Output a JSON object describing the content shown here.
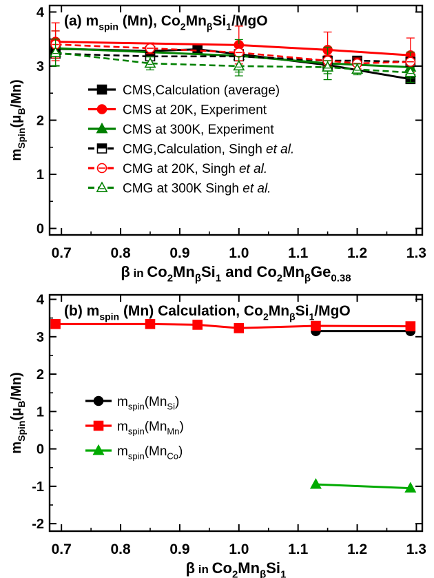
{
  "chart_data": [
    {
      "type": "line",
      "panel": "a",
      "title": {
        "prefix": "(a) m",
        "sub1": "spin",
        "mid": " (Mn), Co",
        "s2": "2",
        "mn": "Mn",
        "s3": "β",
        "si": "Si",
        "s4": "1",
        "tail": "/MgO"
      },
      "ylabel": {
        "m": "m",
        "sub1": "Spin",
        "open": "(μ",
        "sub2": "B",
        "close": "/Mn)"
      },
      "xlabel": {
        "beta": "β",
        " in": " in ",
        "co": "Co",
        "s1": "2",
        "mn": "Mn",
        "s2": "β",
        "si": "Si",
        "s3": "1",
        "and": " and Co",
        "s4": "2",
        "mn2": "Mn",
        "s5": "β",
        "ge": "Ge",
        "s6": "0.38"
      },
      "xlim": [
        0.68,
        1.31
      ],
      "ylim": [
        -0.12,
        4.12
      ],
      "xticks": [
        "0.7",
        "0.8",
        "0.9",
        "1.0",
        "1.1",
        "1.2",
        "1.3"
      ],
      "xtick_values": [
        0.7,
        0.8,
        0.9,
        1.0,
        1.1,
        1.2,
        1.3
      ],
      "yticks": [
        "0",
        "1",
        "2",
        "3",
        "4"
      ],
      "ytick_values": [
        0,
        1,
        2,
        3,
        4
      ],
      "legend_position": "middle-left",
      "series": [
        {
          "name": "CMS,Calculation (average)",
          "color": "#000000",
          "dash": "solid",
          "marker": "square",
          "filled": true,
          "x": [
            0.69,
            0.85,
            0.93,
            1.0,
            1.15,
            1.29
          ],
          "y": [
            3.32,
            3.28,
            3.31,
            3.22,
            3.02,
            2.76
          ],
          "err": []
        },
        {
          "name": "CMS at 20K, Experiment",
          "color": "#ff0000",
          "dash": "solid",
          "marker": "circle",
          "filled": true,
          "x": [
            0.69,
            1.0,
            1.15,
            1.29
          ],
          "y": [
            3.45,
            3.39,
            3.3,
            3.2
          ],
          "err": [
            0.35,
            0.35,
            0.33,
            0.32
          ]
        },
        {
          "name": "CMS at 300K, Experiment",
          "color": "#008000",
          "dash": "solid",
          "marker": "triangle",
          "filled": true,
          "x": [
            0.69,
            1.0,
            1.15,
            1.29
          ],
          "y": [
            3.33,
            3.19,
            3.05,
            2.98
          ],
          "err": [
            0.32,
            0.3,
            0.3,
            0.28
          ]
        },
        {
          "name": "CMG,Calculation, Singh et al.",
          "label_main": "CMG,Calculation, Singh ",
          "label_italic": "et al.",
          "color": "#000000",
          "dash": "dashed",
          "marker": "square",
          "filled": false,
          "x": [
            0.69,
            0.85,
            1.0,
            1.15,
            1.2,
            1.29
          ],
          "y": [
            3.23,
            3.18,
            3.18,
            3.1,
            3.1,
            3.08
          ],
          "err": []
        },
        {
          "name": "CMG at 20K, Singh et al.",
          "label_main": "CMG at 20K, Singh ",
          "label_italic": "et al.",
          "color": "#ff0000",
          "dash": "dashed",
          "marker": "circle",
          "filled": false,
          "x": [
            0.69,
            0.85,
            1.0,
            1.15,
            1.2,
            1.29
          ],
          "y": [
            3.4,
            3.33,
            3.25,
            3.1,
            3.05,
            3.08
          ],
          "err": [
            0.25,
            0.1,
            0.15,
            0.1,
            0.1,
            0.1
          ]
        },
        {
          "name": "CMG at 300K Singh et al.",
          "label_main": "CMG at 300K Singh ",
          "label_italic": "et al.",
          "color": "#008000",
          "dash": "dashed",
          "marker": "triangle",
          "filled": false,
          "x": [
            0.69,
            0.85,
            1.0,
            1.15,
            1.2,
            1.29
          ],
          "y": [
            3.25,
            3.05,
            3.0,
            2.98,
            2.94,
            2.88
          ],
          "err": [
            0.25,
            0.12,
            0.18,
            0.12,
            0.1,
            0.1
          ]
        }
      ]
    },
    {
      "type": "line",
      "panel": "b",
      "title": {
        "prefix": "(b) m",
        "sub1": "spin",
        "mid": " (Mn)  Calculation, Co",
        "s2": "2",
        "mn": "Mn",
        "s3": "β",
        "si": "Si",
        "s4": "1",
        "tail": "/MgO"
      },
      "ylabel": {
        "m": "m",
        "sub1": "Spin",
        "open": "(μ",
        "sub2": "B",
        "close": "/Mn)"
      },
      "xlabel": {
        "beta": "β",
        " in": " in ",
        "co": "Co",
        "s1": "2",
        "mn": "Mn",
        "s2": "β",
        "si": "Si",
        "s3": "1"
      },
      "xlim": [
        0.68,
        1.31
      ],
      "ylim": [
        -2.2,
        4.12
      ],
      "xticks": [
        "0.7",
        "0.8",
        "0.9",
        "1.0",
        "1.1",
        "1.2",
        "1.3"
      ],
      "xtick_values": [
        0.7,
        0.8,
        0.9,
        1.0,
        1.1,
        1.2,
        1.3
      ],
      "yticks": [
        "-2",
        "-1",
        "0",
        "1",
        "2",
        "3",
        "4"
      ],
      "ytick_values": [
        -2,
        -1,
        0,
        1,
        2,
        3,
        4
      ],
      "legend_position": "middle-left",
      "series": [
        {
          "name": "mspin(MnSi)",
          "label_m": "m",
          "label_sub": "spin",
          "label_open": "(Mn",
          "label_sub2": "Si",
          "label_close": ")",
          "color": "#000000",
          "dash": "solid",
          "marker": "circle",
          "filled": true,
          "x": [
            1.13,
            1.29
          ],
          "y": [
            3.15,
            3.15
          ],
          "err": []
        },
        {
          "name": "mspin(MnMn)",
          "label_m": "m",
          "label_sub": "spin",
          "label_open": "(Mn",
          "label_sub2": "Mn",
          "label_close": ")",
          "color": "#ff0000",
          "dash": "solid",
          "marker": "square",
          "filled": true,
          "x": [
            0.69,
            0.85,
            0.93,
            1.0,
            1.13,
            1.29
          ],
          "y": [
            3.34,
            3.34,
            3.32,
            3.23,
            3.29,
            3.28
          ],
          "err": []
        },
        {
          "name": "mspin(MnCo)",
          "label_m": "m",
          "label_sub": "spin",
          "label_open": "(Mn",
          "label_sub2": "Co",
          "label_close": ")",
          "color": "#00aa00",
          "dash": "solid",
          "marker": "triangle",
          "filled": true,
          "x": [
            1.13,
            1.29
          ],
          "y": [
            -0.95,
            -1.05
          ],
          "err": []
        }
      ]
    }
  ]
}
